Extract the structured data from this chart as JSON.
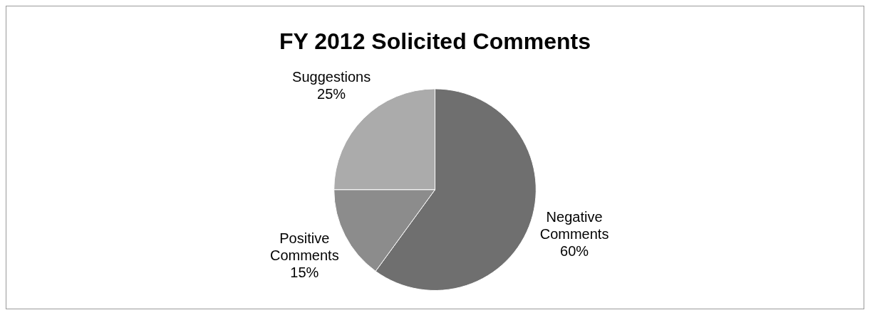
{
  "chart_data": {
    "type": "pie",
    "title": "FY 2012 Solicited Comments",
    "categories": [
      "Negative Comments",
      "Positive Comments",
      "Suggestions"
    ],
    "values": [
      60,
      15,
      25
    ],
    "value_labels": [
      "60%",
      "15%",
      "25%"
    ],
    "colors": [
      "#6f6f6f",
      "#8c8c8c",
      "#ababab"
    ],
    "legend": false
  }
}
